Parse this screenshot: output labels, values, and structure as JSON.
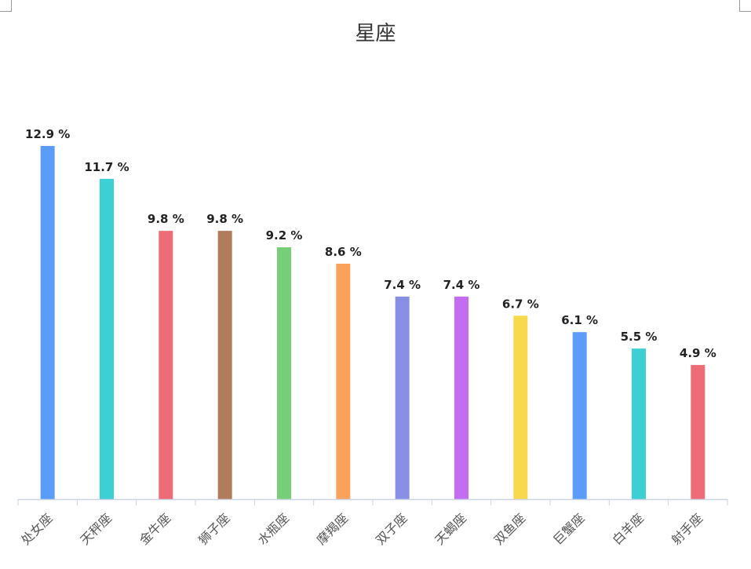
{
  "chart_data": {
    "type": "bar",
    "title": "星座",
    "xlabel": "",
    "ylabel": "",
    "ylim": [
      0,
      12.9
    ],
    "grid": false,
    "legend": "none",
    "value_suffix": " %",
    "categories": [
      "处女座",
      "天秤座",
      "金牛座",
      "狮子座",
      "水瓶座",
      "摩羯座",
      "双子座",
      "天蝎座",
      "双鱼座",
      "巨蟹座",
      "白羊座",
      "射手座"
    ],
    "values": [
      12.9,
      11.7,
      9.8,
      9.8,
      9.2,
      8.6,
      7.4,
      7.4,
      6.7,
      6.1,
      5.5,
      4.9
    ],
    "colors": [
      "#5a9cf8",
      "#3ccfd4",
      "#ee6b78",
      "#b07c5c",
      "#76cf76",
      "#fca15c",
      "#8a8fe6",
      "#c46cf2",
      "#f8d84c",
      "#5a9cf8",
      "#3ccfd4",
      "#ee6b78"
    ]
  }
}
